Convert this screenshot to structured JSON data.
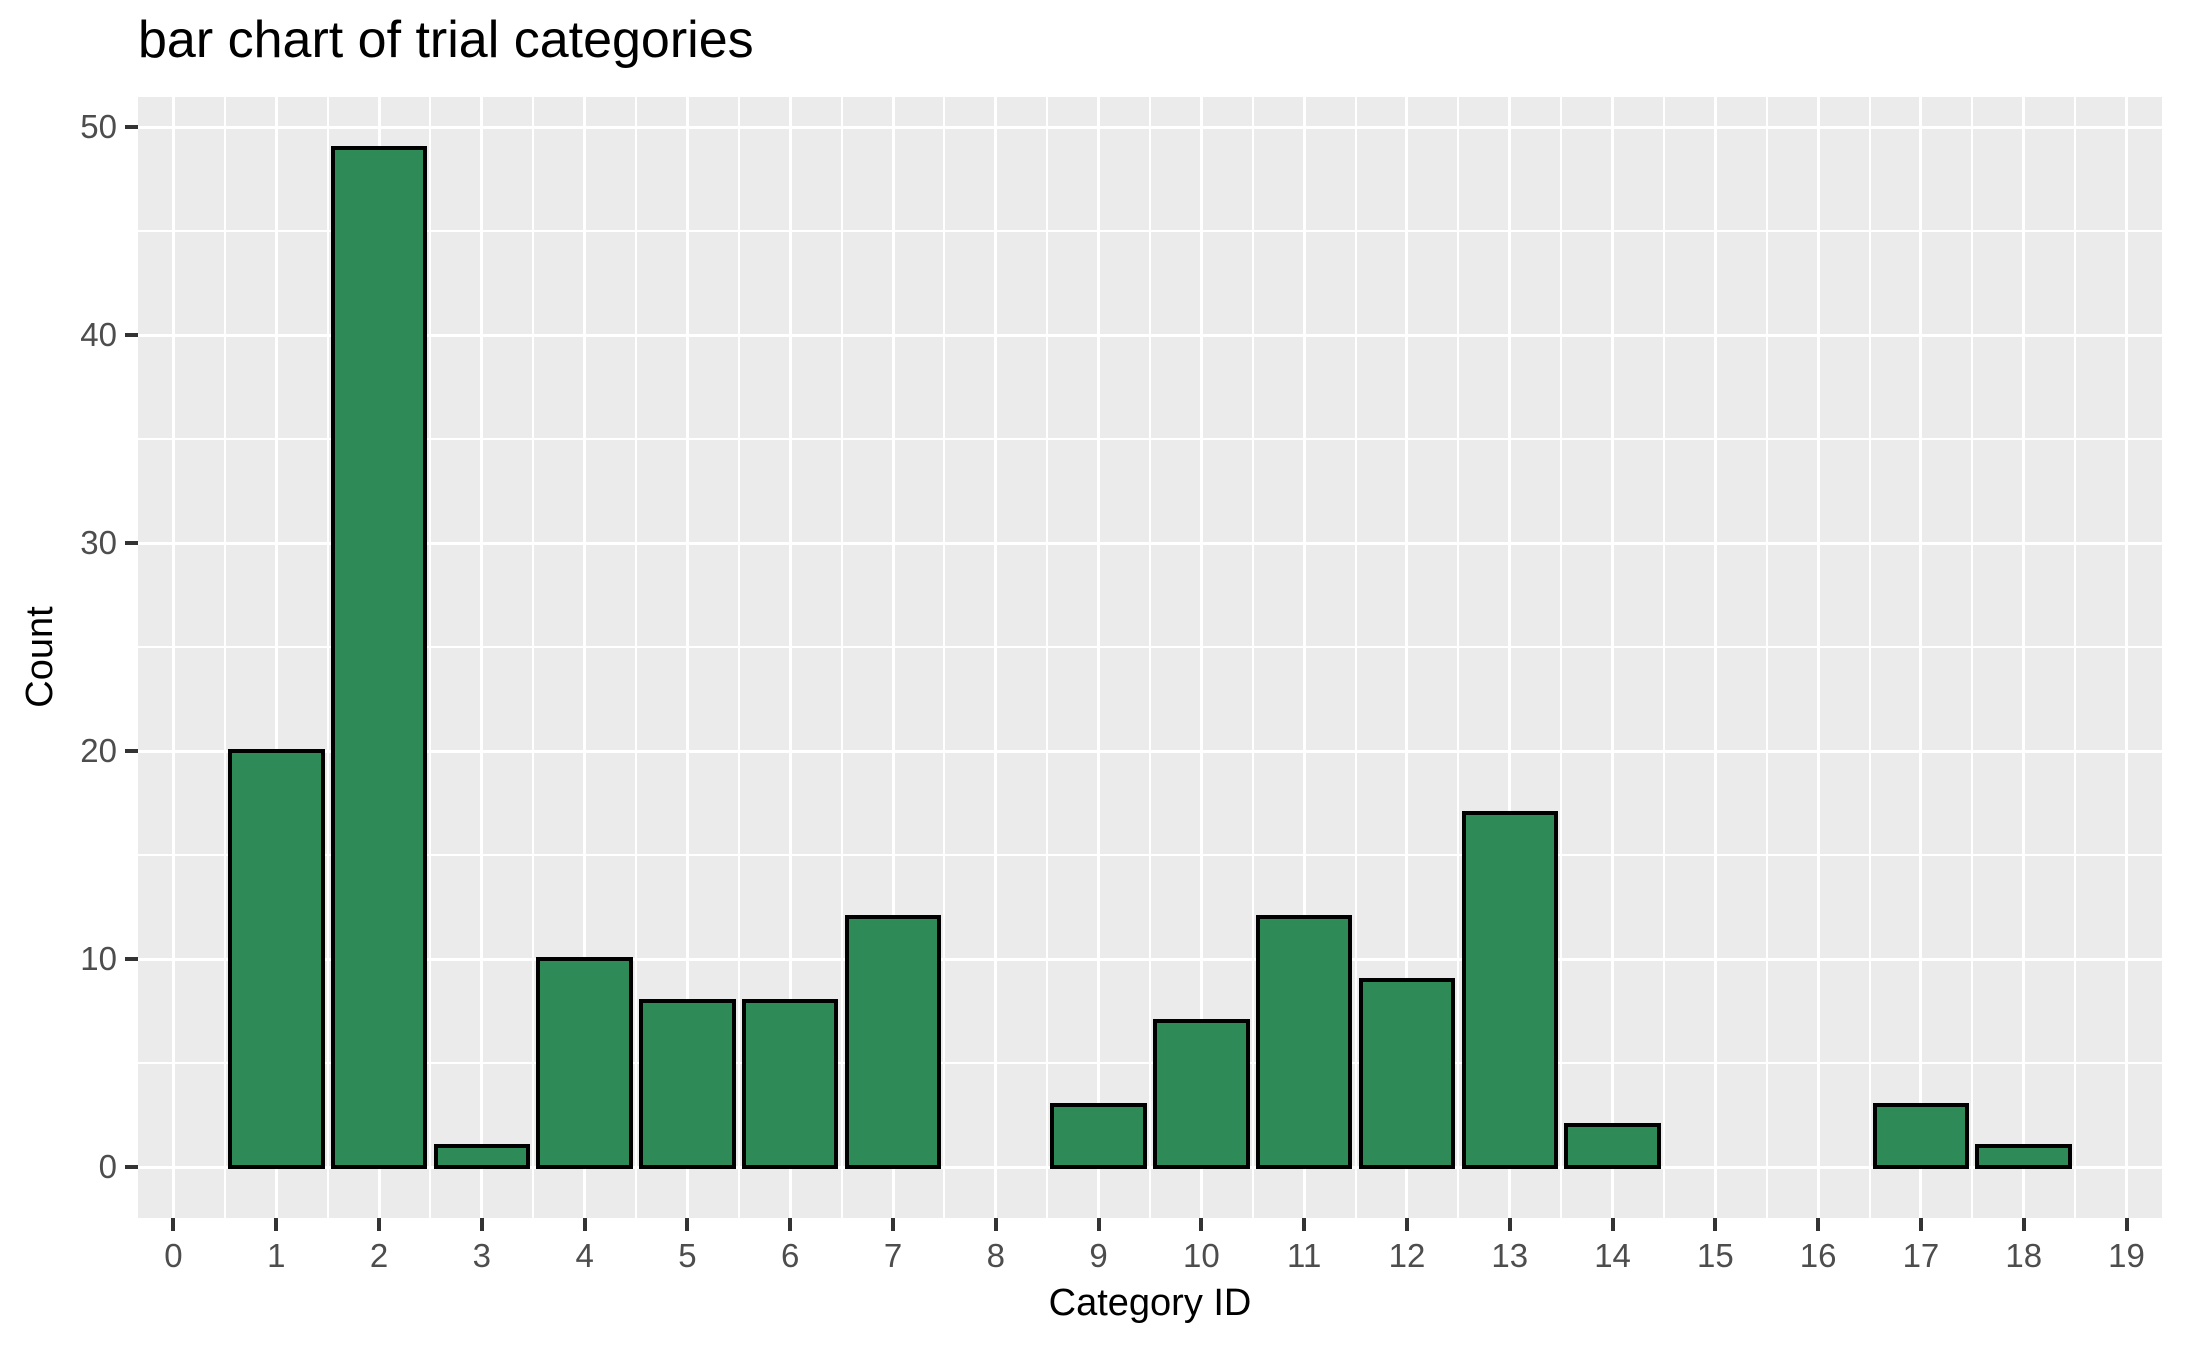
{
  "chart_data": {
    "type": "bar",
    "title": "bar chart of trial categories",
    "xlabel": "Category ID",
    "ylabel": "Count",
    "categories": [
      0,
      1,
      2,
      3,
      4,
      5,
      6,
      7,
      8,
      9,
      10,
      11,
      12,
      13,
      14,
      15,
      16,
      17,
      18,
      19
    ],
    "values": [
      0,
      20,
      49,
      1,
      10,
      8,
      8,
      12,
      0,
      3,
      7,
      12,
      9,
      17,
      2,
      0,
      0,
      3,
      1,
      0
    ],
    "bar_width": 0.9,
    "x_ticks": [
      0,
      1,
      2,
      3,
      4,
      5,
      6,
      7,
      8,
      9,
      10,
      11,
      12,
      13,
      14,
      15,
      16,
      17,
      18,
      19
    ],
    "y_ticks": [
      0,
      10,
      20,
      30,
      40,
      50
    ],
    "y_minor_ticks": [
      5,
      15,
      25,
      35,
      45
    ],
    "xlim": [
      -0.345,
      19.345
    ],
    "ylim": [
      -2.45,
      51.45
    ],
    "grid": {
      "major": true,
      "minor": true
    },
    "legend_position": "none",
    "style": {
      "bar_fill": "#2E8B57",
      "bar_stroke": "#000000",
      "bar_stroke_width": 4,
      "panel_bg": "#EBEBEB",
      "grid_color": "#FFFFFF",
      "grid_major_width": 3,
      "grid_minor_width": 2,
      "tick_label_color": "#4D4D4D",
      "tick_mark_color": "#333333",
      "axis_title_color": "#000000",
      "title_color": "#000000",
      "page_bg": "#FFFFFF"
    }
  }
}
